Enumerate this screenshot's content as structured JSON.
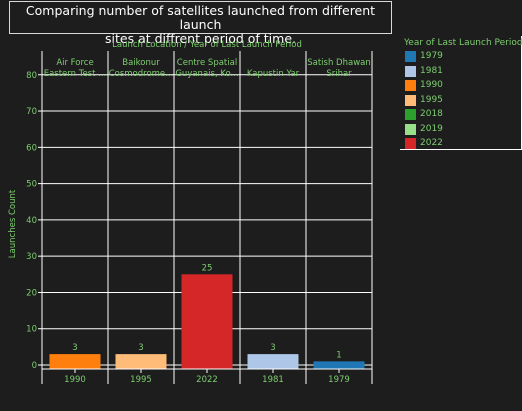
{
  "title": "Comparing number of satellites launched from different launch\nsites at diffrent period of time.",
  "facet_header": "Launch Location  /  Year of Last Launch Period",
  "ylabel": "Launches Count",
  "legend": {
    "title": "Year of Last Launch Period",
    "items": [
      {
        "label": "1979",
        "color": "#1f77b4"
      },
      {
        "label": "1981",
        "color": "#aec7e8"
      },
      {
        "label": "1990",
        "color": "#ff7f0e"
      },
      {
        "label": "1995",
        "color": "#ffbb78"
      },
      {
        "label": "2018",
        "color": "#2ca02c"
      },
      {
        "label": "2019",
        "color": "#98df8a"
      },
      {
        "label": "2022",
        "color": "#d62728"
      }
    ]
  },
  "chart_data": {
    "type": "bar",
    "title": "Comparing number of satellites launched from different launch sites at diffrent period of time.",
    "ylabel": "Launches Count",
    "ylim": [
      0,
      85
    ],
    "yticks": [
      0,
      10,
      20,
      30,
      40,
      50,
      60,
      70,
      80
    ],
    "grid": true,
    "legend_position": "top-right",
    "facets": [
      {
        "label": "Air Force\nEastern Test ...",
        "category": "1990",
        "value": 3,
        "color": "#ff7f0e"
      },
      {
        "label": "Baikonur\nCosmodrome...",
        "category": "1995",
        "value": 3,
        "color": "#ffbb78"
      },
      {
        "label": "Centre Spatial\nGuyanais, Ko...",
        "category": "2022",
        "value": 25,
        "color": "#d62728"
      },
      {
        "label": "Kapustin Yar",
        "category": "1981",
        "value": 3,
        "color": "#aec7e8"
      },
      {
        "label": "Satish Dhawan\nSrihar",
        "category": "1979",
        "value": 1,
        "color": "#1f77b4"
      }
    ]
  }
}
